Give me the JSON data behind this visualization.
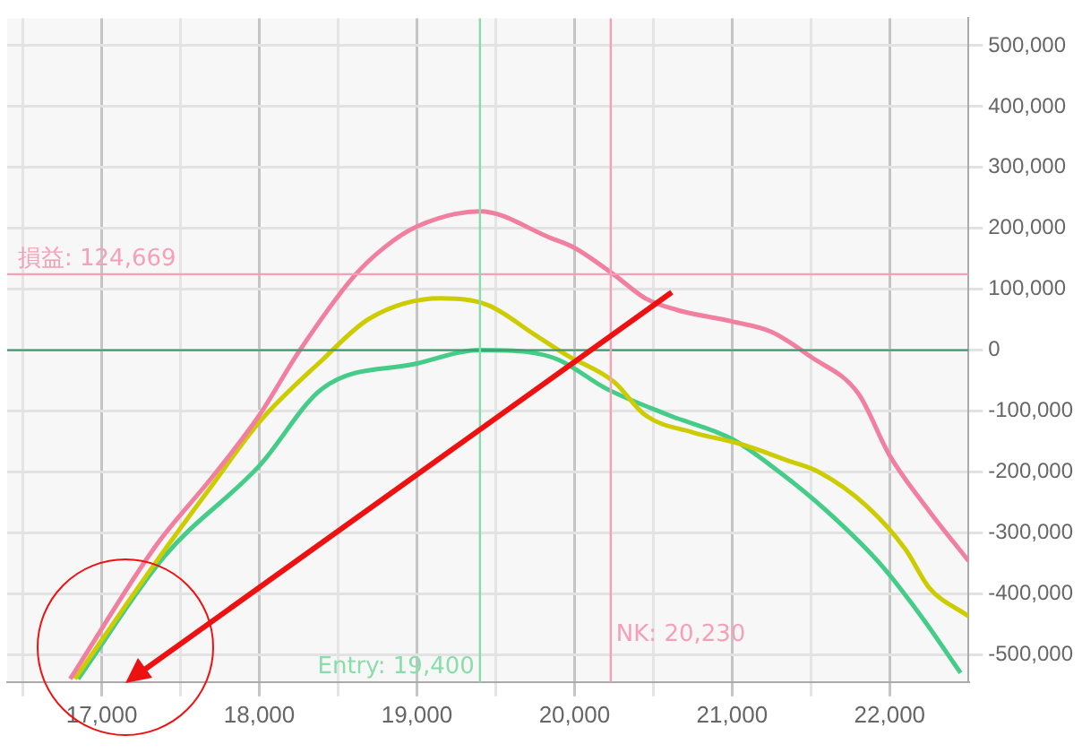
{
  "chart_data": {
    "type": "line",
    "xlim": [
      16400,
      22500
    ],
    "ylim": [
      -545000,
      545000
    ],
    "xticks": [
      {
        "value": 16500,
        "label": null
      },
      {
        "value": 17000,
        "label": "17,000"
      },
      {
        "value": 17500,
        "label": null
      },
      {
        "value": 18000,
        "label": "18,000"
      },
      {
        "value": 18500,
        "label": null
      },
      {
        "value": 19000,
        "label": "19,000"
      },
      {
        "value": 19500,
        "label": null
      },
      {
        "value": 20000,
        "label": "20,000"
      },
      {
        "value": 20500,
        "label": null
      },
      {
        "value": 21000,
        "label": "21,000"
      },
      {
        "value": 21500,
        "label": null
      },
      {
        "value": 22000,
        "label": "22,000"
      }
    ],
    "yticks": [
      {
        "value": -500000,
        "label": "-500,000"
      },
      {
        "value": -400000,
        "label": "-400,000"
      },
      {
        "value": -300000,
        "label": "-300,000"
      },
      {
        "value": -200000,
        "label": "-200,000"
      },
      {
        "value": -100000,
        "label": "-100,000"
      },
      {
        "value": 0,
        "label": "0"
      },
      {
        "value": 100000,
        "label": "100,000"
      },
      {
        "value": 200000,
        "label": "200,000"
      },
      {
        "value": 300000,
        "label": "300,000"
      },
      {
        "value": 400000,
        "label": "400,000"
      },
      {
        "value": 500000,
        "label": "500,000"
      }
    ],
    "grid": true,
    "legend": false,
    "marker": "none",
    "line_style": "solid",
    "series": [
      {
        "color": "#f07fa0",
        "x": [
          16800,
          17350,
          17700,
          18000,
          18250,
          18600,
          18800,
          19000,
          19400,
          19850,
          20000,
          20250,
          20450,
          20650,
          21000,
          21250,
          21500,
          21800,
          22000,
          22250,
          22500
        ],
        "values": [
          -540000,
          -319000,
          -209000,
          -107000,
          -3000,
          121000,
          170000,
          203000,
          228000,
          184000,
          168000,
          124000,
          85000,
          66000,
          47000,
          30000,
          -11000,
          -71000,
          -173000,
          -264000,
          -346000
        ]
      },
      {
        "color": "#cccc00",
        "x": [
          16830,
          17350,
          17700,
          18000,
          18400,
          18700,
          19150,
          19450,
          19750,
          19950,
          20250,
          20450,
          20750,
          21050,
          21350,
          21550,
          21850,
          22100,
          22250,
          22500
        ],
        "values": [
          -540000,
          -346000,
          -222000,
          -118000,
          -16000,
          52000,
          85000,
          74000,
          25000,
          -8000,
          -52000,
          -107000,
          -135000,
          -154000,
          -181000,
          -200000,
          -255000,
          -327000,
          -390000,
          -437000
        ]
      },
      {
        "color": "#44cc88",
        "x": [
          16850,
          17400,
          18000,
          18400,
          19000,
          19400,
          19700,
          19900,
          20200,
          20600,
          21000,
          21300,
          21600,
          21950,
          22200,
          22450
        ],
        "values": [
          -540000,
          -338000,
          -190000,
          -63000,
          -22000,
          0,
          -3000,
          -16000,
          -63000,
          -107000,
          -146000,
          -200000,
          -264000,
          -354000,
          -437000,
          -530000
        ]
      }
    ],
    "ref_lines": [
      {
        "axis": "y",
        "value": 0,
        "color": "#3f9a6e"
      },
      {
        "axis": "y",
        "value": 124669,
        "label": "損益: 124,669",
        "color": "#f4a0b8"
      },
      {
        "axis": "x",
        "value": 19400,
        "label": "Entry: 19,400",
        "color": "#88ddaa"
      },
      {
        "axis": "x",
        "value": 20230,
        "label": "NK: 20,230",
        "color": "#f4a0b8"
      }
    ]
  }
}
